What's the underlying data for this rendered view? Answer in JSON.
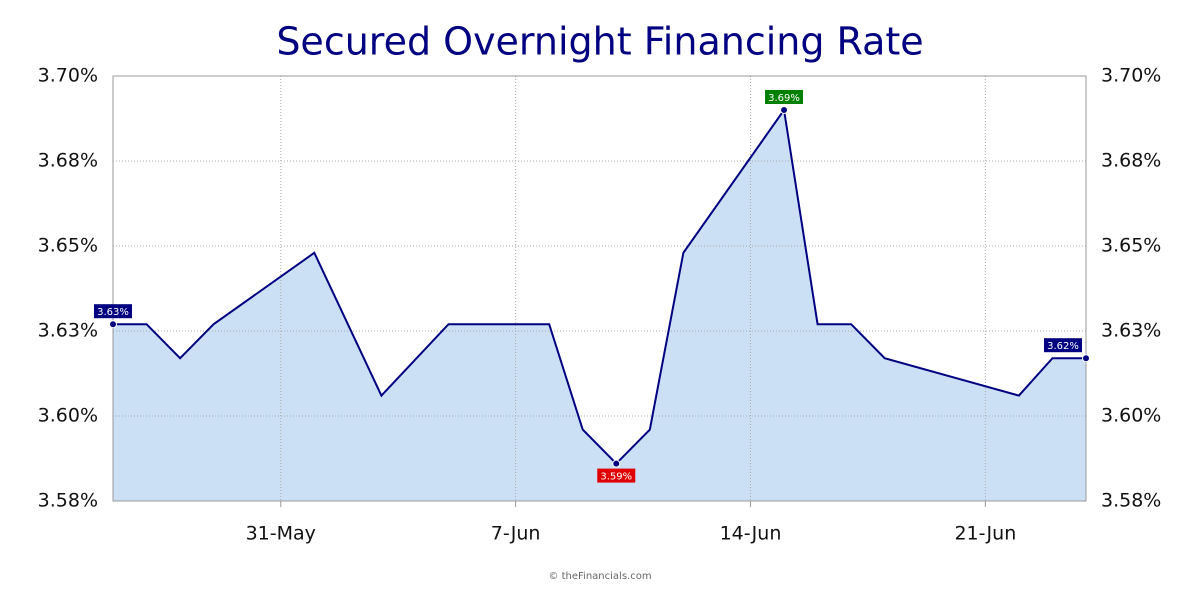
{
  "chart_data": {
    "type": "area",
    "title": "Secured Overnight Financing Rate",
    "footer": "© theFinancials.com",
    "x": [
      "26-May",
      "27-May",
      "28-May",
      "29-May",
      "1-Jun",
      "3-Jun",
      "5-Jun",
      "8-Jun",
      "9-Jun",
      "10-Jun",
      "11-Jun",
      "12-Jun",
      "15-Jun",
      "16-Jun",
      "17-Jun",
      "18-Jun",
      "22-Jun",
      "23-Jun",
      "24-Jun"
    ],
    "values": [
      3.627,
      3.627,
      3.617,
      3.627,
      3.648,
      3.606,
      3.627,
      3.627,
      3.596,
      3.586,
      3.596,
      3.648,
      3.69,
      3.627,
      3.627,
      3.617,
      3.606,
      3.617,
      3.617
    ],
    "value_labels": [
      "3.63%",
      null,
      null,
      null,
      null,
      null,
      null,
      null,
      null,
      "3.59%",
      null,
      null,
      "3.69%",
      null,
      null,
      null,
      null,
      null,
      "3.62%"
    ],
    "xlim": [
      "26-May",
      "24-Jun"
    ],
    "xticks": [
      "31-May",
      "7-Jun",
      "14-Jun",
      "21-Jun"
    ],
    "ylim": [
      3.575,
      3.7
    ],
    "yticks": [
      {
        "value": 3.575,
        "label": "3.58%"
      },
      {
        "value": 3.6,
        "label": "3.60%"
      },
      {
        "value": 3.625,
        "label": "3.63%"
      },
      {
        "value": 3.65,
        "label": "3.65%"
      },
      {
        "value": 3.675,
        "label": "3.68%"
      },
      {
        "value": 3.7,
        "label": "3.70%"
      }
    ],
    "grid": true,
    "color": "#000080",
    "fill": "#cce0f5",
    "label_color": "#000080",
    "max_color": "#008000",
    "min_color": "#e00000"
  }
}
